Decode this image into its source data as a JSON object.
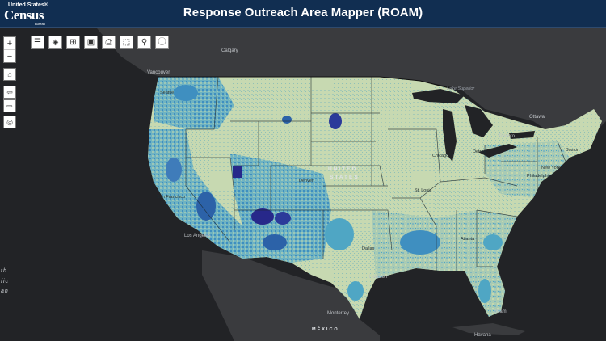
{
  "header": {
    "logo_small": "United States®",
    "logo_big": "Census",
    "logo_tiny": "Bureau",
    "title": "Response Outreach Area Mapper (ROAM)"
  },
  "toolbar": {
    "tools": [
      {
        "name": "legend-tool",
        "icon": "list-icon",
        "glyph": "☰"
      },
      {
        "name": "layers-tool",
        "icon": "layers-icon",
        "glyph": "◈"
      },
      {
        "name": "basemap-tool",
        "icon": "grid-icon",
        "glyph": "⊞"
      },
      {
        "name": "save-tool",
        "icon": "save-icon",
        "glyph": "▣"
      },
      {
        "name": "print-tool",
        "icon": "print-icon",
        "glyph": "⎙"
      },
      {
        "name": "select-tool",
        "icon": "select-icon",
        "glyph": "⬚"
      },
      {
        "name": "share-tool",
        "icon": "share-icon",
        "glyph": "⚲"
      },
      {
        "name": "info-tool",
        "icon": "info-icon",
        "glyph": "ⓘ"
      }
    ]
  },
  "controls": {
    "zoom_in": "+",
    "zoom_out": "−",
    "home": "⌂",
    "back": "⇦",
    "forward": "⇨",
    "locate": "◎"
  },
  "map": {
    "country_usa_1": "UNITED",
    "country_usa_2": "STATES",
    "country_mexico": "MÉXICO",
    "ocean": [
      "th",
      "fic",
      "an"
    ],
    "cities": {
      "calgary": "Calgary",
      "vancouver": "Vancouver",
      "seattle": "Seattle",
      "ottawa": "Ottawa",
      "toronto": "Toronto",
      "chicago": "Chicago",
      "detroit": "Detroit",
      "new_york": "New York",
      "philadelphia": "Philadelphia",
      "boston": "Boston",
      "denver": "Denver",
      "san_francisco": "San Francisco",
      "los_angeles": "Los Angeles",
      "dallas": "Dallas",
      "houston": "Houston",
      "miami": "Miami",
      "monterrey": "Monterrey",
      "havana": "Havana",
      "atlanta": "Atlanta",
      "st_louis": "St. Louis",
      "lake_superior": "Lake Superior"
    },
    "colors": {
      "low": "#c9d9b0",
      "mid_low": "#93c4b4",
      "mid": "#4fa6c4",
      "high": "#2c62a8",
      "very_high": "#27288a",
      "water": "#222326",
      "land_outside": "#3a3b3e"
    }
  }
}
